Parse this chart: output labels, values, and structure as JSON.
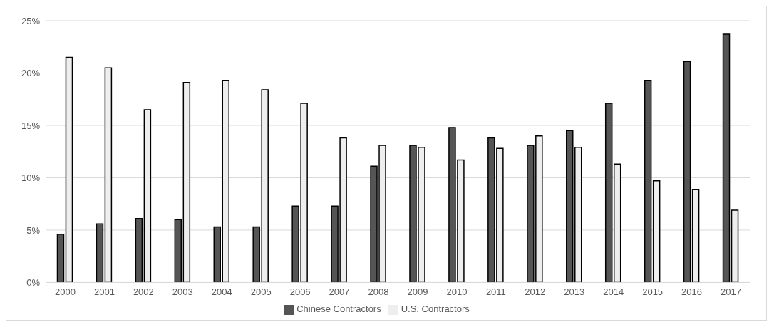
{
  "chart_data": {
    "type": "bar",
    "categories": [
      "2000",
      "2001",
      "2002",
      "2003",
      "2004",
      "2005",
      "2006",
      "2007",
      "2008",
      "2009",
      "2010",
      "2011",
      "2012",
      "2013",
      "2014",
      "2015",
      "2016",
      "2017"
    ],
    "series": [
      {
        "name": "Chinese Contractors",
        "color": "#555555",
        "values": [
          4.6,
          5.6,
          6.1,
          6.0,
          5.3,
          5.3,
          7.3,
          7.3,
          11.1,
          13.1,
          14.8,
          13.8,
          13.1,
          14.5,
          17.1,
          19.3,
          21.1,
          23.7
        ]
      },
      {
        "name": "U.S. Contractors",
        "color": "#eeeeee",
        "values": [
          21.5,
          20.5,
          16.5,
          19.1,
          19.3,
          18.4,
          17.1,
          13.8,
          13.1,
          12.9,
          11.7,
          12.8,
          14.0,
          12.9,
          11.3,
          9.7,
          8.9,
          6.9
        ]
      }
    ],
    "ylim": [
      0,
      25
    ],
    "yticks": [
      {
        "value": 0,
        "label": "0%"
      },
      {
        "value": 5,
        "label": "5%"
      },
      {
        "value": 10,
        "label": "10%"
      },
      {
        "value": 15,
        "label": "15%"
      },
      {
        "value": 20,
        "label": "20%"
      },
      {
        "value": 25,
        "label": "25%"
      }
    ],
    "grid": "y",
    "legend": "bottom"
  }
}
